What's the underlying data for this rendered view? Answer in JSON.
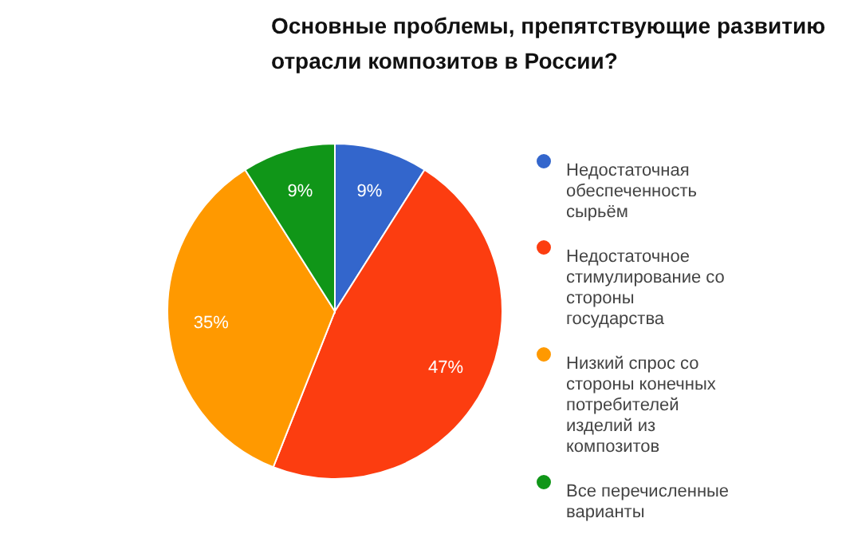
{
  "chart_data": {
    "type": "pie",
    "title": "Основные проблемы, препятствующие развитию отрасли композитов в России?",
    "categories": [
      "Недостаточная обеспеченность сырьём",
      "Недостаточное стимулирование со стороны государства",
      "Низкий спрос со стороны конечных потребителей изделий из композитов",
      "Все перечисленные варианты"
    ],
    "values": [
      9,
      47,
      35,
      9
    ],
    "colors": [
      "#3366cc",
      "#fc3d10",
      "#ff9900",
      "#109618"
    ],
    "value_labels": [
      "9%",
      "47%",
      "35%",
      "9%"
    ],
    "legend": "right"
  }
}
